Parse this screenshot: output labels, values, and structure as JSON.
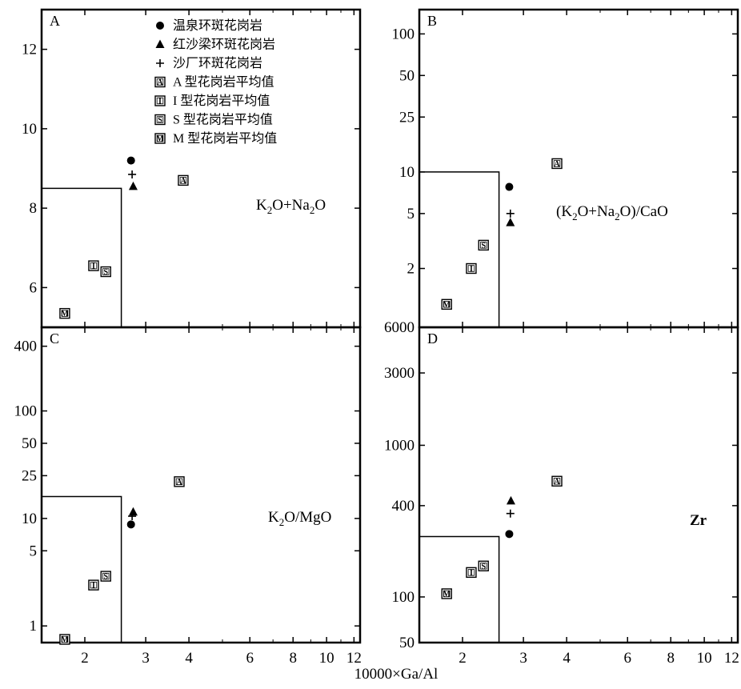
{
  "xlabel": "10000×Ga/Al",
  "legend": [
    {
      "symbol": "circle",
      "label": "温泉环斑花岗岩"
    },
    {
      "symbol": "triangle",
      "label": "红沙梁环斑花岗岩"
    },
    {
      "symbol": "plus",
      "label": "沙厂环斑花岗岩"
    },
    {
      "symbol": "A",
      "label": "A 型花岗岩平均值"
    },
    {
      "symbol": "I",
      "label": "I 型花岗岩平均值"
    },
    {
      "symbol": "S",
      "label": "S 型花岗岩平均值"
    },
    {
      "symbol": "M",
      "label": "M 型花岗岩平均值"
    }
  ],
  "x_ticks": [
    "2",
    "3",
    "4",
    "6",
    "8",
    "10",
    "12"
  ],
  "chart_data": [
    {
      "panel": "A",
      "type": "scatter",
      "ylabel_main": "K",
      "ylabel_parts": [
        "2",
        "O+Na",
        "2",
        "O"
      ],
      "xscale": "log",
      "xlim": [
        1.5,
        12.5
      ],
      "yscale": "linear",
      "ylim": [
        5,
        13
      ],
      "y_ticks": [
        "6",
        "8",
        "10",
        "12"
      ],
      "y_tick_values": [
        6,
        8,
        10,
        12
      ],
      "field": {
        "x_max": 2.55,
        "y_max": 8.5
      },
      "points": [
        {
          "symbol": "circle",
          "x": 2.72,
          "y": 9.2
        },
        {
          "symbol": "plus",
          "x": 2.74,
          "y": 8.85
        },
        {
          "symbol": "triangle",
          "x": 2.76,
          "y": 8.55
        },
        {
          "symbol": "A",
          "x": 3.85,
          "y": 8.7
        },
        {
          "symbol": "I",
          "x": 2.12,
          "y": 6.55
        },
        {
          "symbol": "S",
          "x": 2.3,
          "y": 6.4
        },
        {
          "symbol": "M",
          "x": 1.75,
          "y": 5.35
        }
      ]
    },
    {
      "panel": "B",
      "type": "scatter",
      "ylabel_main": "(K",
      "ylabel_parts": [
        "2",
        "O+Na",
        "2",
        "O)/CaO"
      ],
      "xscale": "log",
      "xlim": [
        1.5,
        12.5
      ],
      "yscale": "log",
      "ylim": [
        0.75,
        150
      ],
      "y_ticks": [
        "2",
        "5",
        "10",
        "25",
        "50",
        "100"
      ],
      "y_tick_values": [
        2,
        5,
        10,
        25,
        50,
        100
      ],
      "field": {
        "x_max": 2.55,
        "y_max": 10
      },
      "points": [
        {
          "symbol": "circle",
          "x": 2.73,
          "y": 7.8
        },
        {
          "symbol": "plus",
          "x": 2.75,
          "y": 5
        },
        {
          "symbol": "triangle",
          "x": 2.75,
          "y": 4.3
        },
        {
          "symbol": "A",
          "x": 3.75,
          "y": 11.5
        },
        {
          "symbol": "I",
          "x": 2.12,
          "y": 2.0
        },
        {
          "symbol": "S",
          "x": 2.3,
          "y": 2.95
        },
        {
          "symbol": "M",
          "x": 1.8,
          "y": 1.1
        }
      ]
    },
    {
      "panel": "C",
      "type": "scatter",
      "ylabel_main": "K",
      "ylabel_parts": [
        "2",
        "O/MgO"
      ],
      "xscale": "log",
      "xlim": [
        1.5,
        12.5
      ],
      "yscale": "log",
      "ylim": [
        0.7,
        600
      ],
      "y_ticks": [
        "1",
        "5",
        "10",
        "25",
        "50",
        "100",
        "400"
      ],
      "y_tick_values": [
        1,
        5,
        10,
        25,
        50,
        100,
        400
      ],
      "field": {
        "x_max": 2.55,
        "y_max": 16
      },
      "points": [
        {
          "symbol": "circle",
          "x": 2.72,
          "y": 8.8
        },
        {
          "symbol": "plus",
          "x": 2.74,
          "y": 10.5
        },
        {
          "symbol": "triangle",
          "x": 2.76,
          "y": 11.5
        },
        {
          "symbol": "A",
          "x": 3.75,
          "y": 22
        },
        {
          "symbol": "I",
          "x": 2.12,
          "y": 2.4
        },
        {
          "symbol": "S",
          "x": 2.3,
          "y": 2.9
        },
        {
          "symbol": "M",
          "x": 1.75,
          "y": 0.75
        }
      ]
    },
    {
      "panel": "D",
      "type": "scatter",
      "ylabel_main": "Zr",
      "ylabel_parts": [],
      "xscale": "log",
      "xlim": [
        1.5,
        12.5
      ],
      "yscale": "log",
      "ylim": [
        50,
        6000
      ],
      "y_ticks": [
        "50",
        "100",
        "400",
        "1000",
        "3000",
        "6000"
      ],
      "y_tick_values": [
        50,
        100,
        400,
        1000,
        3000,
        6000
      ],
      "field": {
        "x_max": 2.55,
        "y_max": 250
      },
      "points": [
        {
          "symbol": "circle",
          "x": 2.73,
          "y": 260
        },
        {
          "symbol": "plus",
          "x": 2.75,
          "y": 355
        },
        {
          "symbol": "triangle",
          "x": 2.76,
          "y": 430
        },
        {
          "symbol": "A",
          "x": 3.75,
          "y": 580
        },
        {
          "symbol": "I",
          "x": 2.12,
          "y": 145
        },
        {
          "symbol": "S",
          "x": 2.3,
          "y": 160
        },
        {
          "symbol": "M",
          "x": 1.8,
          "y": 105
        }
      ]
    }
  ]
}
